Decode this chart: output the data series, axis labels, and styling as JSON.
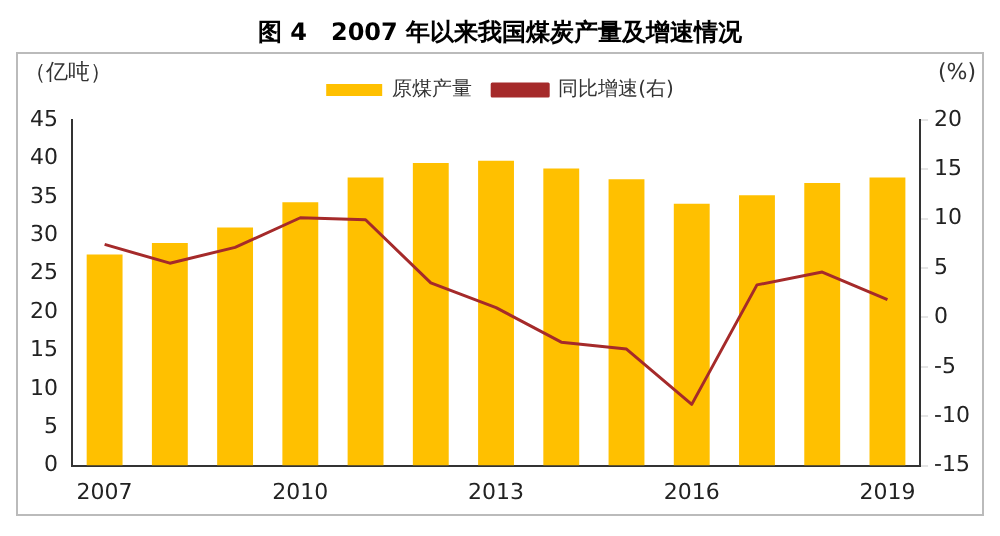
{
  "chart_data": {
    "type": "bar",
    "title": "图 4　2007 年以来我国煤炭产量及增速情况",
    "ylabel": "（亿吨）",
    "y2label": "(%)",
    "categories": [
      "2007",
      null,
      null,
      "2010",
      null,
      null,
      "2013",
      null,
      null,
      "2016",
      null,
      null,
      "2019"
    ],
    "series": [
      {
        "name": "原煤产量",
        "color": "#ffc000",
        "values": [
          27.5,
          29,
          31,
          34.3,
          37.5,
          39.4,
          39.7,
          38.7,
          37.3,
          34.1,
          35.2,
          36.8,
          37.5
        ]
      },
      {
        "name": "同比增速(右)",
        "type": "line",
        "axis": "y2",
        "color": "#a52a2a",
        "values": [
          7.4,
          5.5,
          7.1,
          10.1,
          9.9,
          3.5,
          1.0,
          -2.5,
          -3.2,
          -8.8,
          3.3,
          4.6,
          1.8
        ]
      }
    ],
    "ylim": [
      0,
      45
    ],
    "yticks": [
      0,
      5,
      10,
      15,
      20,
      25,
      30,
      35,
      40,
      45
    ],
    "y2lim": [
      -15,
      20
    ],
    "y2ticks": [
      -15,
      -10,
      -5,
      0,
      5,
      10,
      15,
      20
    ],
    "grid": false,
    "legend": "top",
    "marker": "none"
  }
}
